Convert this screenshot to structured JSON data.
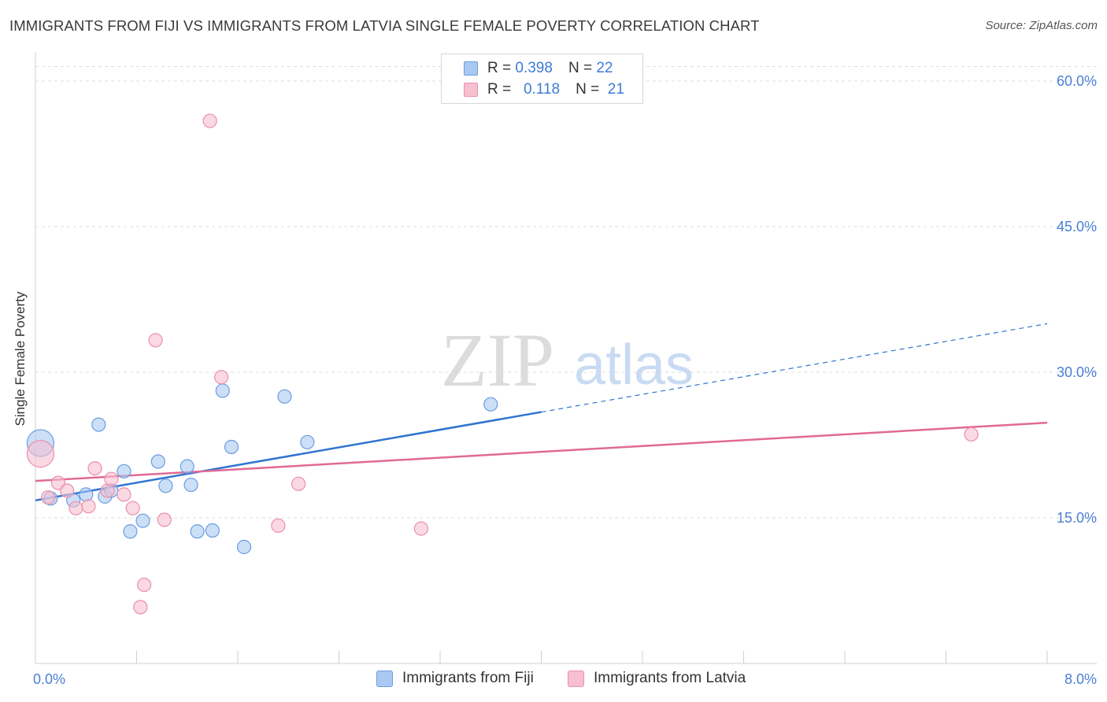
{
  "header": {
    "title": "IMMIGRANTS FROM FIJI VS IMMIGRANTS FROM LATVIA SINGLE FEMALE POVERTY CORRELATION CHART",
    "source": "Source: ZipAtlas.com"
  },
  "watermark": {
    "zip": "ZIP",
    "atlas": "atlas"
  },
  "legend": {
    "fiji": {
      "r_label": "R =",
      "r_value": "0.398",
      "n_label": "N =",
      "n_value": "22"
    },
    "latvia": {
      "r_label": "R =",
      "r_value": "0.118",
      "n_label": "N =",
      "n_value": "21"
    }
  },
  "bottom_legend": {
    "fiji": "Immigrants from Fiji",
    "latvia": "Immigrants from Latvia"
  },
  "colors": {
    "fiji_fill": "#a9c9f2",
    "fiji_stroke": "#6b9de0",
    "fiji_line": "#2f74d0",
    "latvia_fill": "#f7bfd0",
    "latvia_stroke": "#ec8fab",
    "latvia_line": "#e06a94",
    "grid": "#dddddd",
    "tick_text": "#4a7fd4"
  },
  "chart_data": {
    "type": "scatter",
    "title": "IMMIGRANTS FROM FIJI VS IMMIGRANTS FROM LATVIA SINGLE FEMALE POVERTY CORRELATION CHART",
    "xlabel": "",
    "ylabel": "Single Female Poverty",
    "xlim": [
      0,
      8
    ],
    "ylim": [
      0,
      63
    ],
    "x_tick_labels": [
      {
        "value": 0,
        "label": "0.0%"
      },
      {
        "value": 8,
        "label": "8.0%"
      }
    ],
    "x_minor_ticks": [
      0.8,
      1.6,
      2.4,
      3.2,
      4.0,
      4.8,
      5.6,
      6.4,
      7.2,
      8.0
    ],
    "y_ticks": [
      {
        "value": 15,
        "label": "15.0%"
      },
      {
        "value": 30,
        "label": "30.0%"
      },
      {
        "value": 45,
        "label": "45.0%"
      },
      {
        "value": 60,
        "label": "60.0%"
      }
    ],
    "grid": true,
    "series": [
      {
        "name": "Immigrants from Fiji",
        "r": 0.398,
        "n": 22,
        "points": [
          {
            "x": 0.04,
            "y": 22.7,
            "big": true
          },
          {
            "x": 0.12,
            "y": 17.0
          },
          {
            "x": 0.4,
            "y": 17.4
          },
          {
            "x": 0.3,
            "y": 16.8
          },
          {
            "x": 0.55,
            "y": 17.2
          },
          {
            "x": 0.5,
            "y": 24.6
          },
          {
            "x": 0.6,
            "y": 17.8
          },
          {
            "x": 0.7,
            "y": 19.8
          },
          {
            "x": 0.75,
            "y": 13.6
          },
          {
            "x": 0.85,
            "y": 14.7
          },
          {
            "x": 0.97,
            "y": 20.8
          },
          {
            "x": 1.03,
            "y": 18.3
          },
          {
            "x": 1.2,
            "y": 20.3
          },
          {
            "x": 1.23,
            "y": 18.4
          },
          {
            "x": 1.28,
            "y": 13.6
          },
          {
            "x": 1.4,
            "y": 13.7
          },
          {
            "x": 1.48,
            "y": 28.1
          },
          {
            "x": 1.55,
            "y": 22.3
          },
          {
            "x": 1.65,
            "y": 12.0
          },
          {
            "x": 1.97,
            "y": 27.5
          },
          {
            "x": 2.15,
            "y": 22.8
          },
          {
            "x": 3.6,
            "y": 26.7
          }
        ],
        "trend": {
          "x0": 0,
          "y0": 16.8,
          "x1": 4.0,
          "y1": 25.9,
          "dash_to_x": 8.0,
          "dash_to_y": 35.0
        }
      },
      {
        "name": "Immigrants from Latvia",
        "r": 0.118,
        "n": 21,
        "points": [
          {
            "x": 0.04,
            "y": 21.6,
            "big": true
          },
          {
            "x": 0.1,
            "y": 17.1
          },
          {
            "x": 0.18,
            "y": 18.6
          },
          {
            "x": 0.25,
            "y": 17.8
          },
          {
            "x": 0.32,
            "y": 16.0
          },
          {
            "x": 0.42,
            "y": 16.2
          },
          {
            "x": 0.47,
            "y": 20.1
          },
          {
            "x": 0.57,
            "y": 17.8
          },
          {
            "x": 0.6,
            "y": 19.0
          },
          {
            "x": 0.7,
            "y": 17.4
          },
          {
            "x": 0.77,
            "y": 16.0
          },
          {
            "x": 0.83,
            "y": 5.8
          },
          {
            "x": 0.86,
            "y": 8.1
          },
          {
            "x": 0.95,
            "y": 33.3
          },
          {
            "x": 1.02,
            "y": 14.8
          },
          {
            "x": 1.38,
            "y": 55.9
          },
          {
            "x": 1.47,
            "y": 29.5
          },
          {
            "x": 1.92,
            "y": 14.2
          },
          {
            "x": 2.08,
            "y": 18.5
          },
          {
            "x": 3.05,
            "y": 13.9
          },
          {
            "x": 7.4,
            "y": 23.6
          }
        ],
        "trend": {
          "x0": 0,
          "y0": 18.8,
          "x1": 8.0,
          "y1": 24.8
        }
      }
    ]
  }
}
